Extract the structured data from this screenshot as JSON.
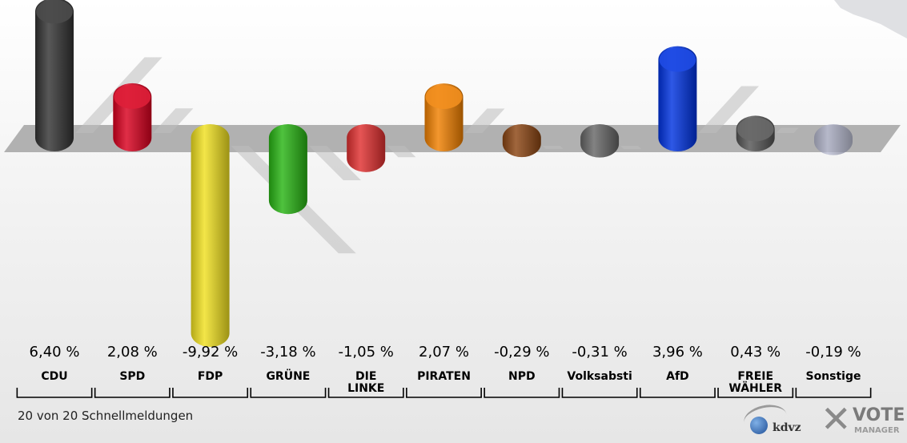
{
  "footnote": "20 von 20 Schnellmeldungen",
  "logos": {
    "kdvz": "kdvz",
    "vote": "VOTE",
    "manager": "MANAGER"
  },
  "chart_data": {
    "type": "bar",
    "categories": [
      [
        "CDU"
      ],
      [
        "SPD"
      ],
      [
        "FDP"
      ],
      [
        "GRÜNE"
      ],
      [
        "DIE",
        "LINKE"
      ],
      [
        "PIRATEN"
      ],
      [
        "NPD"
      ],
      [
        "Volksabsti"
      ],
      [
        "AfD"
      ],
      [
        "FREIE",
        "WÄHLER"
      ],
      [
        "Sonstige"
      ]
    ],
    "values": [
      6.4,
      2.08,
      -9.92,
      -3.18,
      -1.05,
      2.07,
      -0.29,
      -0.31,
      3.96,
      0.43,
      -0.19
    ],
    "value_labels": [
      "6,40 %",
      "2,08 %",
      "-9,92 %",
      "-3,18 %",
      "-1,05 %",
      "2,07 %",
      "-0,29 %",
      "-0,31 %",
      "3,96 %",
      "0,43 %",
      "-0,19 %"
    ],
    "colors": [
      "#333333",
      "#d9001e",
      "#f0e020",
      "#28b414",
      "#e03030",
      "#f08000",
      "#8b4513",
      "#666666",
      "#0033e0",
      "#555555",
      "#a8acc8"
    ]
  }
}
